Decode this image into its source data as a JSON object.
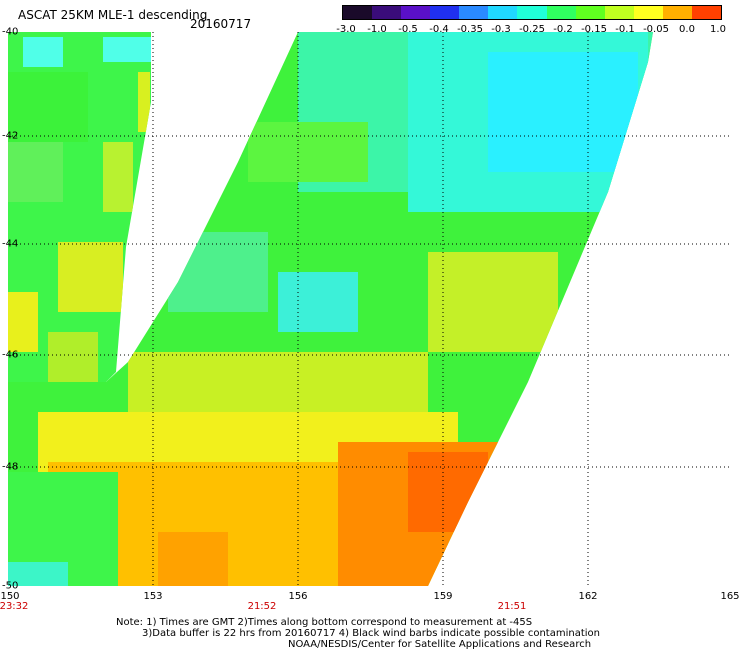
{
  "header": {
    "title": "ASCAT 25KM MLE-1 descending",
    "date": "20160717"
  },
  "colorbar": {
    "labels": [
      "-3.0",
      "-1.0",
      "-0.5",
      "-0.4",
      "-0.35",
      "-0.3",
      "-0.25",
      "-0.2",
      "-0.15",
      "-0.1",
      "-0.05",
      "0.0",
      "1.0"
    ],
    "colors": [
      "#1a0a2a",
      "#3a0c7a",
      "#5a10c8",
      "#2030f0",
      "#2a8aff",
      "#20d8ff",
      "#20ffd8",
      "#30ff60",
      "#60ff20",
      "#c0ff20",
      "#ffff20",
      "#ffb000",
      "#ff4000"
    ]
  },
  "map": {
    "lat_labels": [
      "-40",
      "-42",
      "-44",
      "-46",
      "-48",
      "-50"
    ],
    "lon_labels": [
      "150",
      "153",
      "156",
      "159",
      "162",
      "165"
    ],
    "time_labels": [
      "23:32",
      "21:52",
      "21:51"
    ]
  },
  "notes": {
    "line1": "Note: 1) Times are GMT 2)Times along bottom correspond to measurement at -45S",
    "line2": "3)Data buffer is 22 hrs from 20160717 4) Black wind barbs indicate possible contamination",
    "line3": "NOAA/NESDIS/Center for Satellite Applications and Research"
  }
}
